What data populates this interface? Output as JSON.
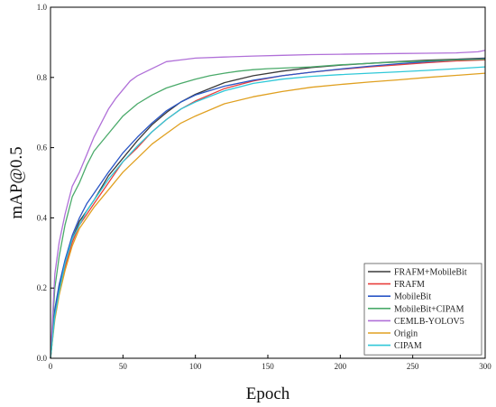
{
  "chart_data": {
    "type": "line",
    "title": "",
    "xlabel": "Epoch",
    "ylabel": "mAP@0.5",
    "xlim": [
      0,
      300
    ],
    "ylim": [
      0,
      1.0
    ],
    "xticks": [
      0,
      50,
      100,
      150,
      200,
      250,
      300
    ],
    "xtick_labels": [
      "0",
      "50",
      "100",
      "150",
      "200",
      "250",
      "300"
    ],
    "yticks": [
      0,
      0.2,
      0.4,
      0.6,
      0.8,
      1.0
    ],
    "ytick_labels": [
      "0.0",
      "0.2",
      "0.4",
      "0.6",
      "0.8",
      "1.0"
    ],
    "grid": false,
    "legend_position": "bottom-right",
    "series": [
      {
        "name": "FRAFM+MobileBit",
        "color": "#3a3a3a",
        "x": [
          0,
          3,
          6,
          10,
          15,
          20,
          25,
          30,
          40,
          50,
          60,
          70,
          80,
          90,
          100,
          120,
          140,
          160,
          180,
          200,
          220,
          240,
          260,
          280,
          300
        ],
        "y": [
          0.0,
          0.13,
          0.2,
          0.27,
          0.34,
          0.39,
          0.42,
          0.45,
          0.52,
          0.57,
          0.62,
          0.665,
          0.7,
          0.73,
          0.752,
          0.785,
          0.805,
          0.818,
          0.828,
          0.835,
          0.84,
          0.845,
          0.849,
          0.852,
          0.855
        ]
      },
      {
        "name": "FRAFM",
        "color": "#e8403e",
        "x": [
          0,
          3,
          6,
          10,
          15,
          20,
          25,
          30,
          40,
          50,
          60,
          70,
          80,
          90,
          100,
          120,
          140,
          160,
          180,
          200,
          220,
          240,
          260,
          280,
          300
        ],
        "y": [
          0.0,
          0.12,
          0.19,
          0.26,
          0.33,
          0.38,
          0.41,
          0.44,
          0.5,
          0.56,
          0.6,
          0.645,
          0.68,
          0.71,
          0.733,
          0.768,
          0.79,
          0.805,
          0.815,
          0.823,
          0.83,
          0.836,
          0.842,
          0.847,
          0.85
        ]
      },
      {
        "name": "MobileBit",
        "color": "#2a56c6",
        "x": [
          0,
          3,
          6,
          10,
          15,
          20,
          25,
          30,
          40,
          50,
          60,
          70,
          80,
          90,
          100,
          120,
          140,
          160,
          180,
          200,
          220,
          240,
          260,
          280,
          300
        ],
        "y": [
          0.0,
          0.14,
          0.21,
          0.28,
          0.35,
          0.4,
          0.44,
          0.47,
          0.53,
          0.585,
          0.63,
          0.67,
          0.705,
          0.73,
          0.75,
          0.775,
          0.792,
          0.805,
          0.815,
          0.824,
          0.832,
          0.839,
          0.845,
          0.85,
          0.853
        ]
      },
      {
        "name": "MobileBit+CIPAM",
        "color": "#4aaa6a",
        "x": [
          0,
          3,
          6,
          10,
          15,
          20,
          25,
          30,
          40,
          50,
          60,
          70,
          80,
          90,
          100,
          110,
          120,
          130,
          140,
          150,
          180,
          200,
          220,
          240,
          260,
          280,
          300
        ],
        "y": [
          0.0,
          0.2,
          0.29,
          0.38,
          0.46,
          0.5,
          0.55,
          0.59,
          0.64,
          0.69,
          0.725,
          0.75,
          0.77,
          0.783,
          0.795,
          0.805,
          0.812,
          0.818,
          0.822,
          0.825,
          0.83,
          0.836,
          0.84,
          0.844,
          0.847,
          0.85,
          0.852
        ]
      },
      {
        "name": "CEMLB-YOLOV5",
        "color": "#b070d8",
        "x": [
          0,
          3,
          6,
          10,
          15,
          20,
          25,
          30,
          35,
          40,
          45,
          50,
          55,
          60,
          70,
          80,
          90,
          100,
          120,
          140,
          160,
          180,
          200,
          220,
          240,
          260,
          280,
          295,
          300
        ],
        "y": [
          0.0,
          0.24,
          0.33,
          0.41,
          0.49,
          0.53,
          0.58,
          0.63,
          0.67,
          0.71,
          0.74,
          0.765,
          0.79,
          0.805,
          0.825,
          0.845,
          0.85,
          0.855,
          0.858,
          0.861,
          0.863,
          0.865,
          0.866,
          0.867,
          0.868,
          0.869,
          0.87,
          0.873,
          0.877
        ]
      },
      {
        "name": "Origin",
        "color": "#e0a020",
        "x": [
          0,
          3,
          6,
          10,
          15,
          20,
          25,
          30,
          40,
          50,
          60,
          70,
          80,
          90,
          100,
          120,
          140,
          160,
          180,
          200,
          220,
          240,
          260,
          280,
          300
        ],
        "y": [
          0.0,
          0.11,
          0.18,
          0.25,
          0.32,
          0.37,
          0.4,
          0.43,
          0.48,
          0.53,
          0.57,
          0.61,
          0.64,
          0.67,
          0.69,
          0.725,
          0.745,
          0.76,
          0.772,
          0.78,
          0.787,
          0.793,
          0.8,
          0.806,
          0.812
        ]
      },
      {
        "name": "CIPAM",
        "color": "#30c8d8",
        "x": [
          0,
          3,
          6,
          10,
          15,
          20,
          25,
          30,
          40,
          50,
          60,
          70,
          80,
          90,
          100,
          120,
          140,
          160,
          180,
          200,
          220,
          240,
          260,
          280,
          300
        ],
        "y": [
          0.0,
          0.12,
          0.19,
          0.27,
          0.34,
          0.38,
          0.42,
          0.45,
          0.51,
          0.56,
          0.605,
          0.645,
          0.68,
          0.71,
          0.73,
          0.762,
          0.783,
          0.795,
          0.803,
          0.808,
          0.812,
          0.816,
          0.82,
          0.825,
          0.83
        ]
      }
    ]
  }
}
